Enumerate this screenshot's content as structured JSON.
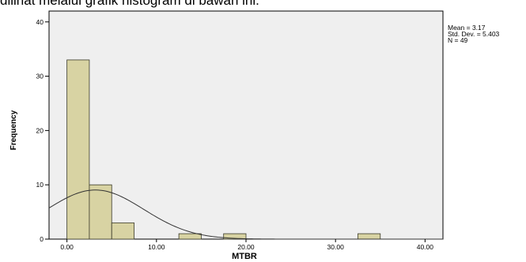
{
  "caption": "dilihat melalui grafik histogram di bawah ini.",
  "chart_data": {
    "type": "bar",
    "subtype": "histogram",
    "xlabel": "MTBR",
    "ylabel": "Frequency",
    "xlim": [
      -2,
      42
    ],
    "ylim": [
      0,
      42
    ],
    "x_ticks": [
      0,
      10,
      20,
      30,
      40
    ],
    "x_tick_labels": [
      "0.00",
      "10.00",
      "20.00",
      "30.00",
      "40.00"
    ],
    "y_ticks": [
      0,
      10,
      20,
      30,
      40
    ],
    "y_tick_labels": [
      "0",
      "10",
      "20",
      "30",
      "40"
    ],
    "bin_width": 2.5,
    "bins": [
      {
        "start": 0.0,
        "end": 2.5,
        "count": 33
      },
      {
        "start": 2.5,
        "end": 5.0,
        "count": 10
      },
      {
        "start": 5.0,
        "end": 7.5,
        "count": 3
      },
      {
        "start": 12.5,
        "end": 15.0,
        "count": 1
      },
      {
        "start": 17.5,
        "end": 20.0,
        "count": 1
      },
      {
        "start": 32.5,
        "end": 35.0,
        "count": 1
      }
    ],
    "normal_curve": {
      "mean": 3.17,
      "std_dev": 5.403,
      "n": 49
    },
    "stats": [
      "Mean = 3.17",
      "Std. Dev. = 5.403",
      "N = 49"
    ],
    "grid": false,
    "colors": {
      "bar_fill": "#d8d3a3",
      "bar_stroke": "#3a3a2a",
      "plot_bg": "#efefef",
      "curve": "#333333"
    }
  }
}
